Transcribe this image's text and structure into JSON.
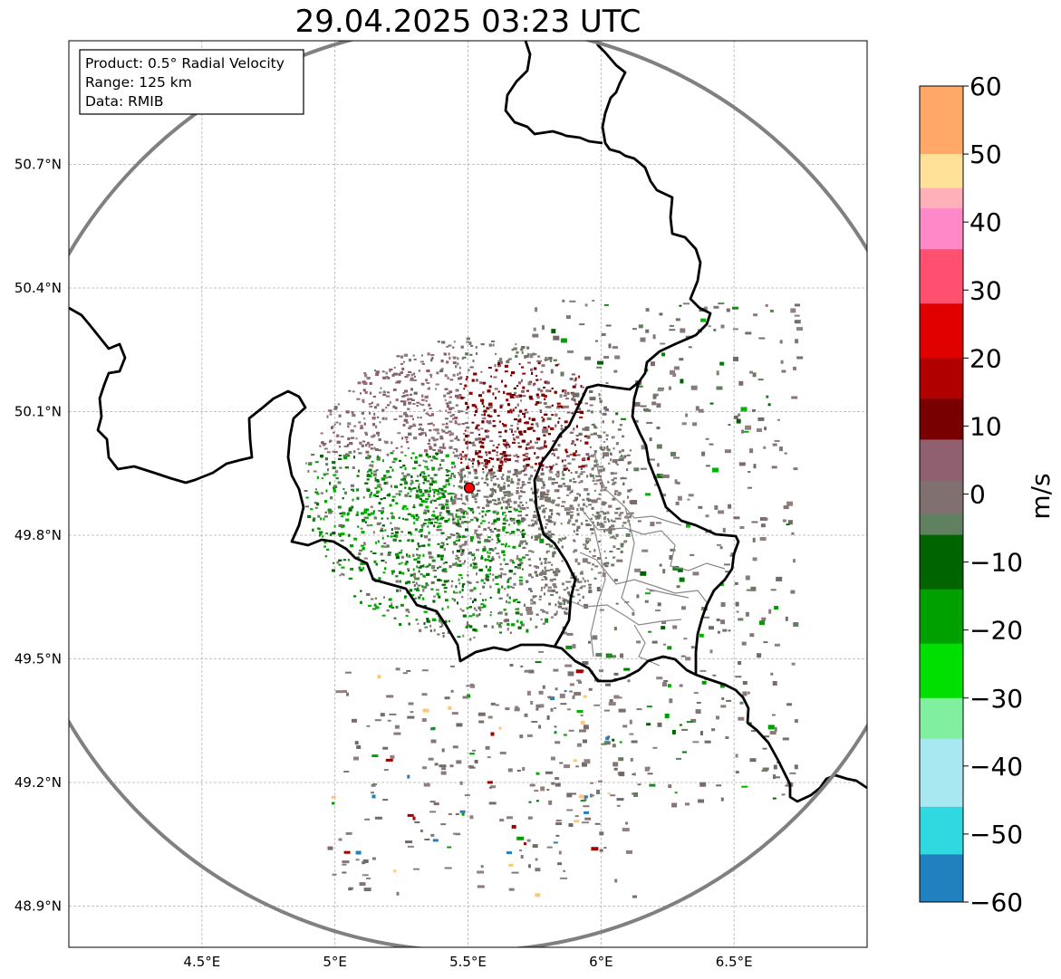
{
  "title": "29.04.2025 03:23 UTC",
  "info": {
    "line1": "Product: 0.5° Radial Velocity",
    "line2": "Range: 125 km",
    "line3": "Data: RMIB"
  },
  "map": {
    "lon_range": [
      4.0,
      7.0
    ],
    "lat_range": [
      48.8,
      51.0
    ],
    "x_ticks": [
      {
        "value": 4.5,
        "label": "4.5°E"
      },
      {
        "value": 5.0,
        "label": "5°E"
      },
      {
        "value": 5.5,
        "label": "5.5°E"
      },
      {
        "value": 6.0,
        "label": "6°E"
      },
      {
        "value": 6.5,
        "label": "6.5°E"
      }
    ],
    "y_ticks": [
      {
        "value": 48.9,
        "label": "48.9°N"
      },
      {
        "value": 49.2,
        "label": "49.2°N"
      },
      {
        "value": 49.5,
        "label": "49.5°N"
      },
      {
        "value": 49.8,
        "label": "49.8°N"
      },
      {
        "value": 50.1,
        "label": "50.1°N"
      },
      {
        "value": 50.4,
        "label": "50.4°N"
      },
      {
        "value": 50.7,
        "label": "50.7°N"
      }
    ],
    "radar_site": {
      "lon": 5.505,
      "lat": 49.915
    },
    "range_km": 125,
    "range_ring_color": "#808080",
    "radar_marker_color": "#ff0000",
    "border_color": "#000000",
    "admin_border_color": "#888888",
    "grid": true
  },
  "colorbar": {
    "label": "m/s",
    "min": -60,
    "max": 60,
    "ticks": [
      {
        "value": 60,
        "label": "60"
      },
      {
        "value": 50,
        "label": "50"
      },
      {
        "value": 40,
        "label": "40"
      },
      {
        "value": 30,
        "label": "30"
      },
      {
        "value": 20,
        "label": "20"
      },
      {
        "value": 10,
        "label": "10"
      },
      {
        "value": 0,
        "label": "0"
      },
      {
        "value": -10,
        "label": "−10"
      },
      {
        "value": -20,
        "label": "−20"
      },
      {
        "value": -30,
        "label": "−30"
      },
      {
        "value": -40,
        "label": "−40"
      },
      {
        "value": -50,
        "label": "−50"
      },
      {
        "value": -60,
        "label": "−60"
      }
    ],
    "stops": [
      {
        "from": 50,
        "to": 60,
        "color": "#ffa868"
      },
      {
        "from": 45,
        "to": 50,
        "color": "#ffe298"
      },
      {
        "from": 42,
        "to": 45,
        "color": "#ffb0b8"
      },
      {
        "from": 36,
        "to": 42,
        "color": "#ff88c8"
      },
      {
        "from": 28,
        "to": 36,
        "color": "#ff5070"
      },
      {
        "from": 20,
        "to": 28,
        "color": "#e00000"
      },
      {
        "from": 14,
        "to": 20,
        "color": "#b00000"
      },
      {
        "from": 8,
        "to": 14,
        "color": "#780000"
      },
      {
        "from": 2,
        "to": 8,
        "color": "#906070"
      },
      {
        "from": -3,
        "to": 2,
        "color": "#807070"
      },
      {
        "from": -6,
        "to": -3,
        "color": "#608060"
      },
      {
        "from": -14,
        "to": -6,
        "color": "#006400"
      },
      {
        "from": -22,
        "to": -14,
        "color": "#00a000"
      },
      {
        "from": -30,
        "to": -22,
        "color": "#00e000"
      },
      {
        "from": -36,
        "to": -30,
        "color": "#80f0a0"
      },
      {
        "from": -46,
        "to": -36,
        "color": "#a8e8f0"
      },
      {
        "from": -53,
        "to": -46,
        "color": "#30d8e0"
      },
      {
        "from": -60,
        "to": -53,
        "color": "#2080c0"
      }
    ]
  }
}
